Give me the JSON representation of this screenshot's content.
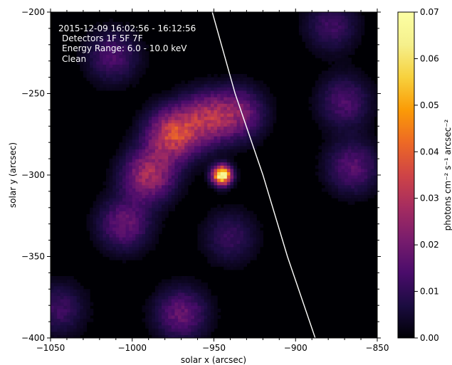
{
  "chart_data": {
    "type": "heatmap",
    "title": "",
    "annotation_lines": [
      "2015-12-09 16:02:56 - 16:12:56",
      "Detectors 1F 5F 7F",
      "Energy Range: 6.0 - 10.0 keV",
      "Clean"
    ],
    "xlabel": "solar x (arcsec)",
    "ylabel": "solar y (arcsec)",
    "xlim": [
      -1050,
      -850
    ],
    "ylim": [
      -400,
      -200
    ],
    "x_ticks": [
      -1050,
      -1000,
      -950,
      -900,
      -850
    ],
    "x_tick_labels": [
      "−1050",
      "−1000",
      "−950",
      "−900",
      "−850"
    ],
    "y_ticks": [
      -200,
      -250,
      -300,
      -350,
      -400
    ],
    "y_tick_labels": [
      "−200",
      "−250",
      "−300",
      "−350",
      "−400"
    ],
    "colorbar": {
      "label": "photons cm⁻² s⁻¹ arcsec⁻²",
      "range": [
        0.0,
        0.07
      ],
      "ticks": [
        0.0,
        0.01,
        0.02,
        0.03,
        0.04,
        0.05,
        0.06,
        0.07
      ],
      "tick_labels": [
        "0.00",
        "0.01",
        "0.02",
        "0.03",
        "0.04",
        "0.05",
        "0.06",
        "0.07"
      ],
      "colormap": "inferno"
    },
    "grid": false,
    "source_peak": {
      "x": -945,
      "y": -300,
      "value": 0.07
    },
    "emission_regions": [
      {
        "x": -975,
        "y": -275,
        "value": 0.033
      },
      {
        "x": -990,
        "y": -300,
        "value": 0.027
      },
      {
        "x": -955,
        "y": -265,
        "value": 0.024
      },
      {
        "x": -935,
        "y": -262,
        "value": 0.02
      },
      {
        "x": -1005,
        "y": -330,
        "value": 0.018
      },
      {
        "x": -970,
        "y": -385,
        "value": 0.018
      },
      {
        "x": -1012,
        "y": -227,
        "value": 0.014
      },
      {
        "x": -865,
        "y": -295,
        "value": 0.016
      },
      {
        "x": -870,
        "y": -255,
        "value": 0.014
      },
      {
        "x": -878,
        "y": -208,
        "value": 0.012
      },
      {
        "x": -1045,
        "y": -382,
        "value": 0.012
      },
      {
        "x": -940,
        "y": -338,
        "value": 0.011
      }
    ],
    "limb_curve": [
      {
        "x": -951,
        "y": -200
      },
      {
        "x": -937,
        "y": -250
      },
      {
        "x": -920,
        "y": -300
      },
      {
        "x": -905,
        "y": -350
      },
      {
        "x": -888,
        "y": -400
      }
    ]
  }
}
